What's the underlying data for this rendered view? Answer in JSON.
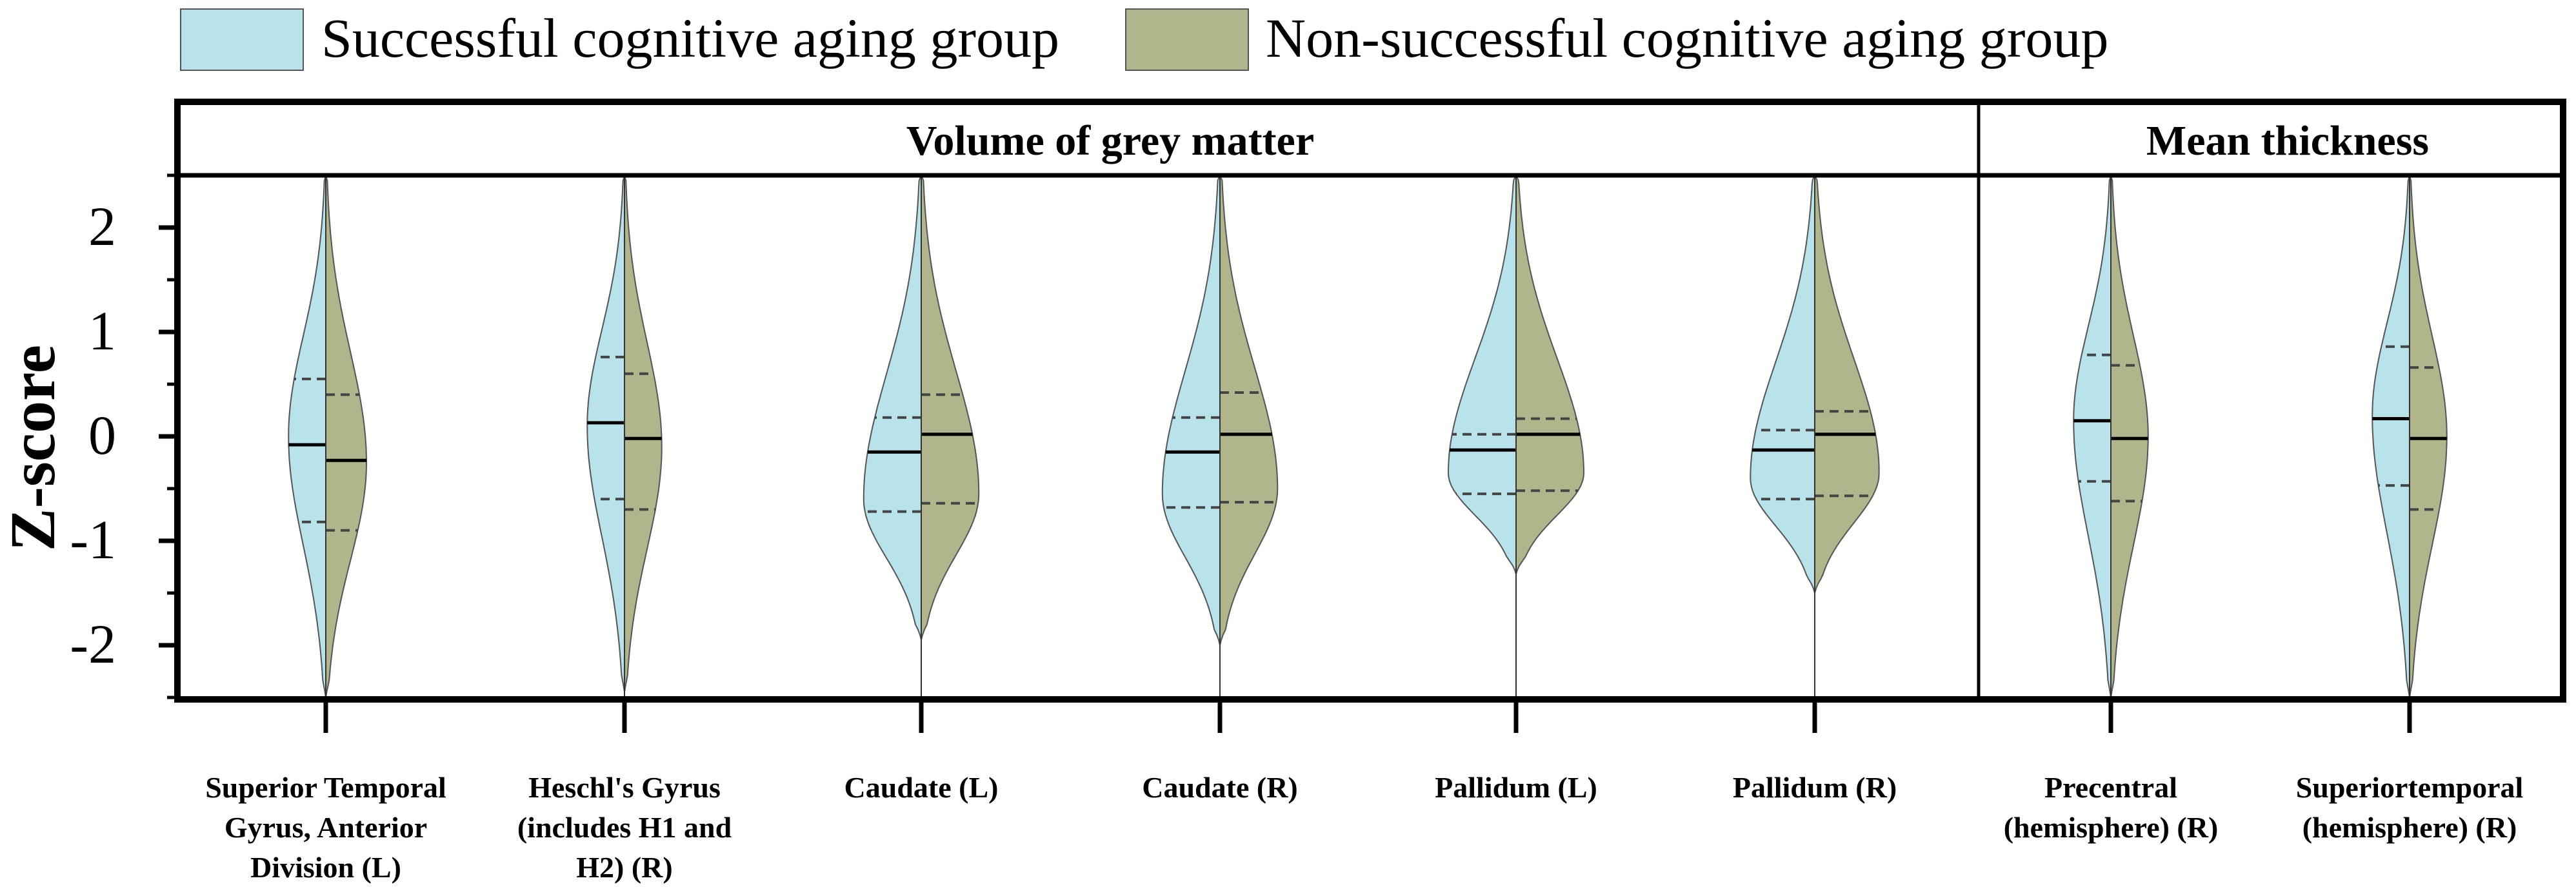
{
  "colors": {
    "successful": "#b8e3ea",
    "non_successful": "#b0b58c",
    "frame": "#000000",
    "violin_edge": "#555555",
    "quartile": "#444444"
  },
  "legend": {
    "successful": "Successful cognitive aging group",
    "non_successful": "Non-successful cognitive aging group"
  },
  "panels": {
    "left": "Volume of grey matter",
    "right": "Mean thickness"
  },
  "chart_data": {
    "type": "split-violin",
    "ylabel": "Z-score",
    "ylim": [
      -2.5,
      2.5
    ],
    "yticks": [
      -2,
      -1,
      0,
      1,
      2
    ],
    "ytick_labels": [
      "-2",
      "-1",
      "0",
      "1",
      "2"
    ],
    "series": [
      {
        "name": "Successful cognitive aging group",
        "side": "left"
      },
      {
        "name": "Non-successful cognitive aging group",
        "side": "right"
      }
    ],
    "categories": [
      {
        "label_lines": [
          "Superior Temporal",
          "Gyrus, Anterior",
          "Division (L)"
        ],
        "panel": "left",
        "successful": {
          "median": -0.08,
          "q1": -0.82,
          "q3": 0.55,
          "min": -2.5,
          "max": 2.5,
          "peak": 0.0,
          "width": 0.55
        },
        "non_successful": {
          "median": -0.23,
          "q1": -0.9,
          "q3": 0.4,
          "min": -2.5,
          "max": 2.5,
          "peak": -0.25,
          "width": 0.6
        }
      },
      {
        "label_lines": [
          "Heschl's Gyrus",
          "(includes H1 and",
          "H2) (R)"
        ],
        "panel": "left",
        "successful": {
          "median": 0.13,
          "q1": -0.6,
          "q3": 0.76,
          "min": -2.45,
          "max": 2.5,
          "peak": 0.1,
          "width": 0.55
        },
        "non_successful": {
          "median": -0.02,
          "q1": -0.7,
          "q3": 0.6,
          "min": -2.45,
          "max": 2.5,
          "peak": -0.1,
          "width": 0.55
        }
      },
      {
        "label_lines": [
          "Caudate (L)"
        ],
        "panel": "left",
        "successful": {
          "median": -0.15,
          "q1": -0.72,
          "q3": 0.18,
          "min": -1.95,
          "max": 2.5,
          "peak": -0.6,
          "width": 0.85
        },
        "non_successful": {
          "median": 0.02,
          "q1": -0.64,
          "q3": 0.4,
          "min": -1.95,
          "max": 2.5,
          "peak": -0.55,
          "width": 0.85
        }
      },
      {
        "label_lines": [
          "Caudate (R)"
        ],
        "panel": "left",
        "successful": {
          "median": -0.15,
          "q1": -0.68,
          "q3": 0.18,
          "min": -2.0,
          "max": 2.5,
          "peak": -0.55,
          "width": 0.85
        },
        "non_successful": {
          "median": 0.02,
          "q1": -0.63,
          "q3": 0.42,
          "min": -2.0,
          "max": 2.5,
          "peak": -0.5,
          "width": 0.85
        }
      },
      {
        "label_lines": [
          "Pallidum (L)"
        ],
        "panel": "left",
        "successful": {
          "median": -0.13,
          "q1": -0.55,
          "q3": 0.02,
          "min": -1.32,
          "max": 2.5,
          "peak": -0.35,
          "width": 1.0
        },
        "non_successful": {
          "median": 0.02,
          "q1": -0.52,
          "q3": 0.17,
          "min": -1.32,
          "max": 2.5,
          "peak": -0.35,
          "width": 1.0
        }
      },
      {
        "label_lines": [
          "Pallidum (R)"
        ],
        "panel": "left",
        "successful": {
          "median": -0.13,
          "q1": -0.6,
          "q3": 0.06,
          "min": -1.5,
          "max": 2.5,
          "peak": -0.4,
          "width": 0.95
        },
        "non_successful": {
          "median": 0.02,
          "q1": -0.57,
          "q3": 0.24,
          "min": -1.5,
          "max": 2.5,
          "peak": -0.35,
          "width": 0.95
        }
      },
      {
        "label_lines": [
          "Precentral",
          "(hemisphere) (R)"
        ],
        "panel": "right",
        "successful": {
          "median": 0.15,
          "q1": -0.43,
          "q3": 0.78,
          "min": -2.5,
          "max": 2.5,
          "peak": 0.15,
          "width": 0.55
        },
        "non_successful": {
          "median": -0.02,
          "q1": -0.62,
          "q3": 0.68,
          "min": -2.5,
          "max": 2.5,
          "peak": 0.0,
          "width": 0.55
        }
      },
      {
        "label_lines": [
          "Superiortemporal",
          "(hemisphere) (R)"
        ],
        "panel": "right",
        "successful": {
          "median": 0.17,
          "q1": -0.47,
          "q3": 0.86,
          "min": -2.5,
          "max": 2.5,
          "peak": 0.2,
          "width": 0.55
        },
        "non_successful": {
          "median": -0.02,
          "q1": -0.7,
          "q3": 0.66,
          "min": -2.5,
          "max": 2.5,
          "peak": 0.0,
          "width": 0.55
        }
      }
    ]
  }
}
